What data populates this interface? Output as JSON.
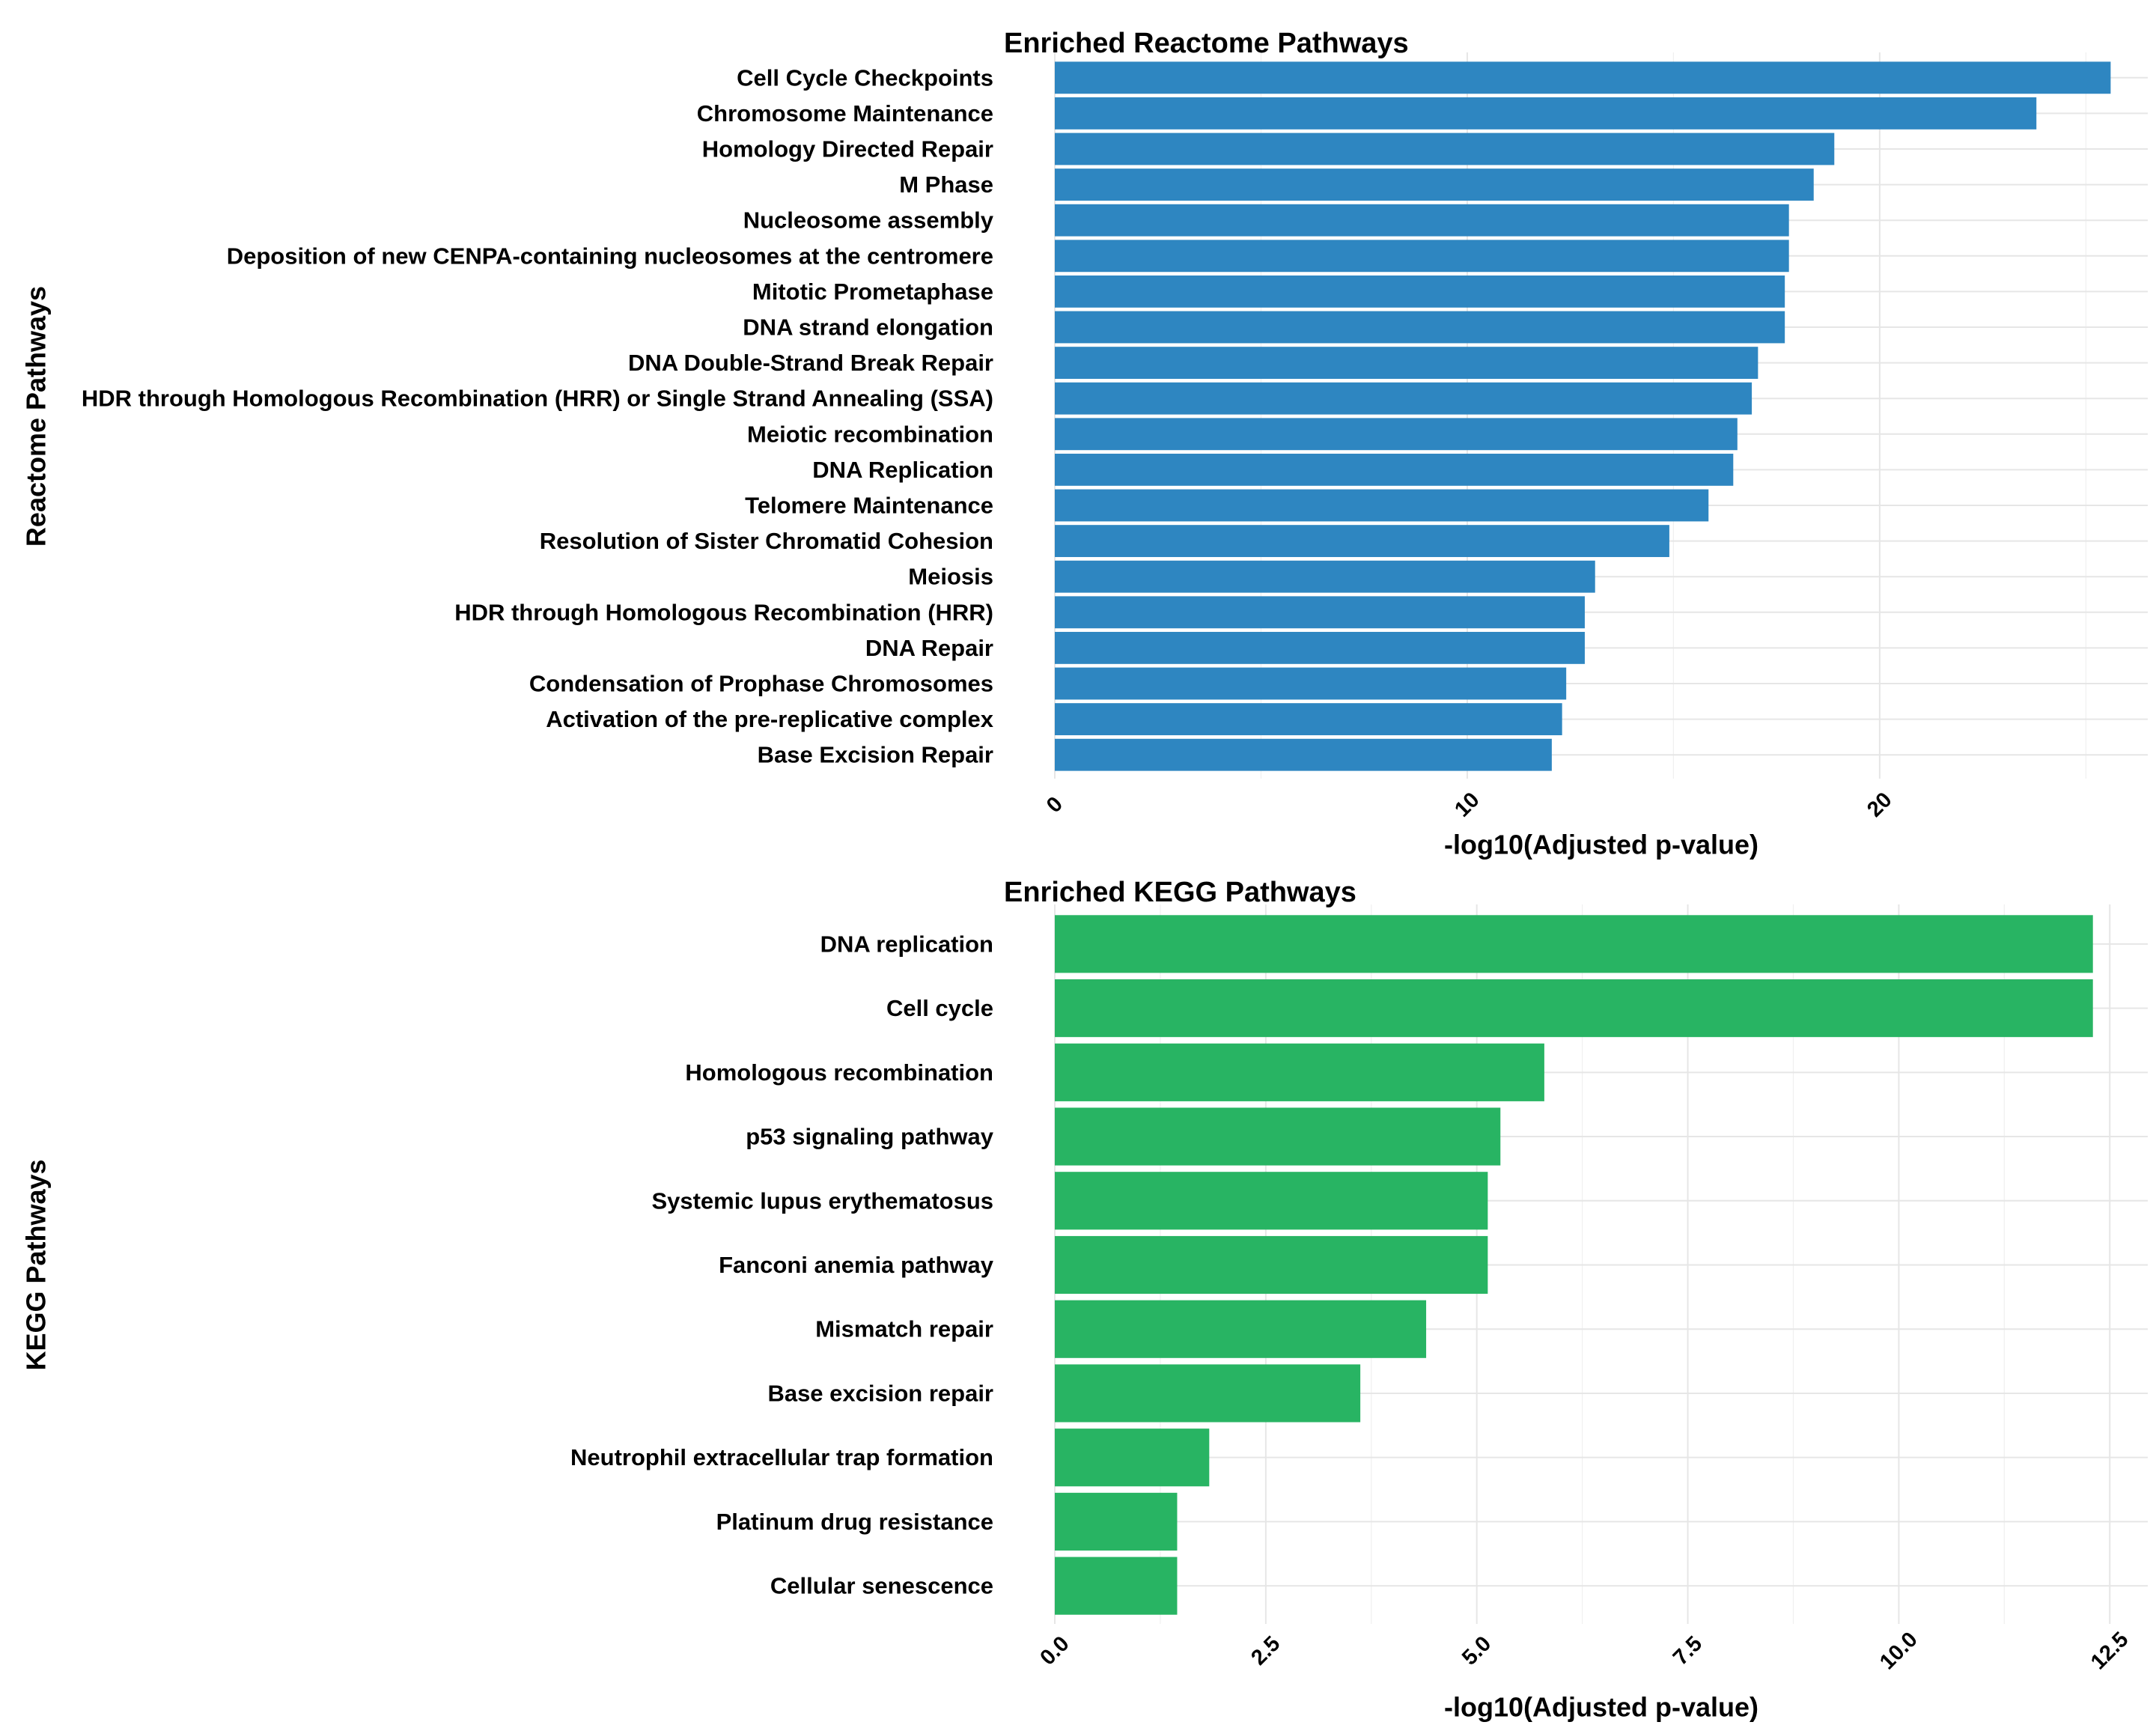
{
  "chart_data": [
    {
      "type": "bar",
      "orientation": "horizontal",
      "title": "Enriched Reactome Pathways",
      "xlabel": "-log10(Adjusted p-value)",
      "ylabel": "Reactome Pathways",
      "xlim": [
        0,
        26.5
      ],
      "xticks": [
        0,
        10,
        20
      ],
      "tick_labels": [
        "0",
        "10",
        "20"
      ],
      "minor_ticks": [
        5,
        15,
        25
      ],
      "grid": true,
      "legend": "none",
      "color": "#2e86c1",
      "categories": [
        "Cell Cycle Checkpoints",
        "Chromosome Maintenance",
        "Homology Directed Repair",
        "M Phase",
        "Nucleosome assembly",
        "Deposition of new CENPA-containing nucleosomes at the centromere",
        "Mitotic Prometaphase",
        "DNA strand elongation",
        "DNA Double-Strand Break Repair",
        "HDR through Homologous Recombination (HRR) or Single Strand Annealing (SSA)",
        "Meiotic recombination",
        "DNA Replication",
        "Telomere Maintenance",
        "Resolution of Sister Chromatid Cohesion",
        "Meiosis",
        "HDR through Homologous Recombination (HRR)",
        "DNA Repair",
        "Condensation of Prophase Chromosomes",
        "Activation of the pre-replicative complex",
        "Base Excision Repair"
      ],
      "values": [
        25.6,
        23.8,
        18.9,
        18.4,
        17.8,
        17.8,
        17.7,
        17.7,
        17.05,
        16.9,
        16.55,
        16.45,
        15.85,
        14.9,
        13.1,
        12.85,
        12.85,
        12.4,
        12.3,
        12.05
      ]
    },
    {
      "type": "bar",
      "orientation": "horizontal",
      "title": "Enriched KEGG Pathways",
      "xlabel": "-log10(Adjusted p-value)",
      "ylabel": "KEGG Pathways",
      "xlim": [
        0,
        12.95
      ],
      "xticks": [
        0,
        2.5,
        5,
        7.5,
        10,
        12.5
      ],
      "tick_labels": [
        "0.0",
        "2.5",
        "5.0",
        "7.5",
        "10.0",
        "12.5"
      ],
      "minor_ticks": [
        1.25,
        3.75,
        6.25,
        8.75,
        11.25
      ],
      "grid": true,
      "legend": "none",
      "color": "#28b463",
      "categories": [
        "DNA replication",
        "Cell cycle",
        "Homologous recombination",
        "p53 signaling pathway",
        "Systemic lupus erythematosus",
        "Fanconi anemia pathway",
        "Mismatch repair",
        "Base excision repair",
        "Neutrophil extracellular trap formation",
        "Platinum drug resistance",
        "Cellular senescence"
      ],
      "values": [
        12.3,
        12.3,
        5.8,
        5.28,
        5.13,
        5.13,
        4.4,
        3.62,
        1.83,
        1.45,
        1.45
      ]
    }
  ]
}
